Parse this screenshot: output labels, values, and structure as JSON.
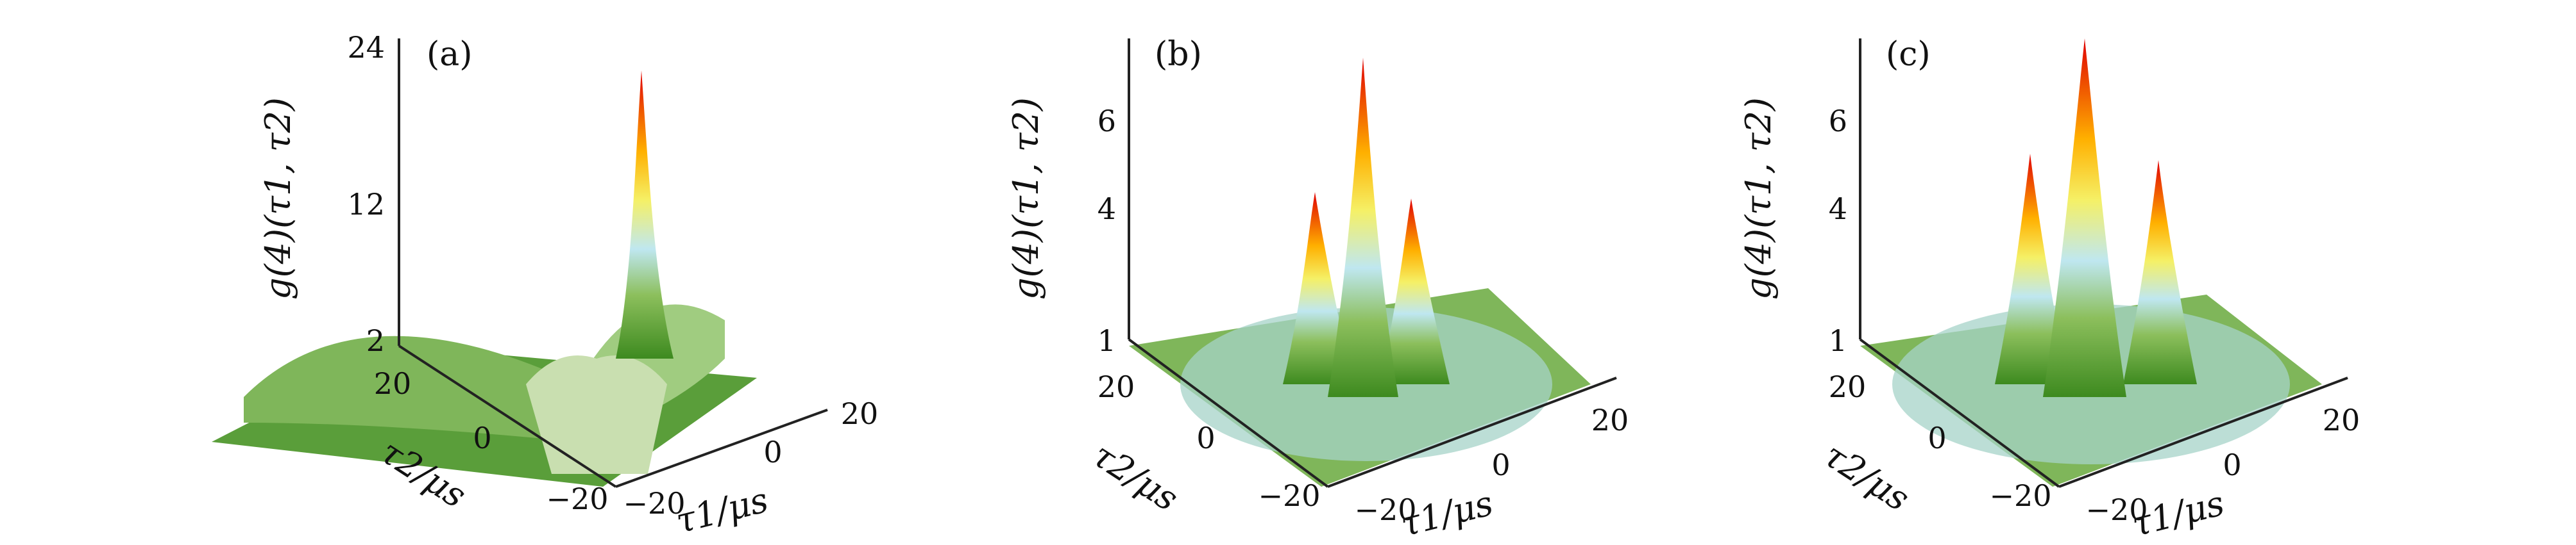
{
  "chart_data": [
    {
      "type": "surface3d",
      "panel_label": "(a)",
      "zlabel": "g(4)(τ1, τ2)",
      "xlabel": "τ1/μs",
      "ylabel": "τ2/μs",
      "z_ticks": [
        "24",
        "12",
        "2"
      ],
      "x_ticks": [
        "−20",
        "0",
        "20"
      ],
      "y_ticks": [
        "20",
        "0",
        "−20"
      ],
      "zlim": [
        2,
        24
      ],
      "xlim": [
        -28,
        28
      ],
      "ylim": [
        -28,
        28
      ],
      "peak_value": 23,
      "ridge_height": 8,
      "side_peaks": []
    },
    {
      "type": "surface3d",
      "panel_label": "(b)",
      "zlabel": "g(4)(τ1, τ2)",
      "xlabel": "τ1/μs",
      "ylabel": "τ2/μs",
      "z_ticks": [
        "6",
        "4",
        "1"
      ],
      "x_ticks": [
        "−20",
        "0",
        "20"
      ],
      "y_ticks": [
        "20",
        "0",
        "−20"
      ],
      "zlim": [
        1,
        7.5
      ],
      "xlim": [
        -28,
        28
      ],
      "ylim": [
        -28,
        28
      ],
      "peak_value": 7.2,
      "ridge_height": 2.8,
      "side_peaks": [
        4.6,
        4.4
      ]
    },
    {
      "type": "surface3d",
      "panel_label": "(c)",
      "zlabel": "g(4)(τ1, τ2)",
      "xlabel": "τ1/μs",
      "ylabel": "τ2/μs",
      "z_ticks": [
        "6",
        "4",
        "1"
      ],
      "x_ticks": [
        "−20",
        "0",
        "20"
      ],
      "y_ticks": [
        "20",
        "0",
        "−20"
      ],
      "zlim": [
        1,
        7.5
      ],
      "xlim": [
        -28,
        28
      ],
      "ylim": [
        -28,
        28
      ],
      "peak_value": 7.6,
      "ridge_height": 3.0,
      "side_peaks": [
        5.2,
        5.0
      ]
    }
  ]
}
